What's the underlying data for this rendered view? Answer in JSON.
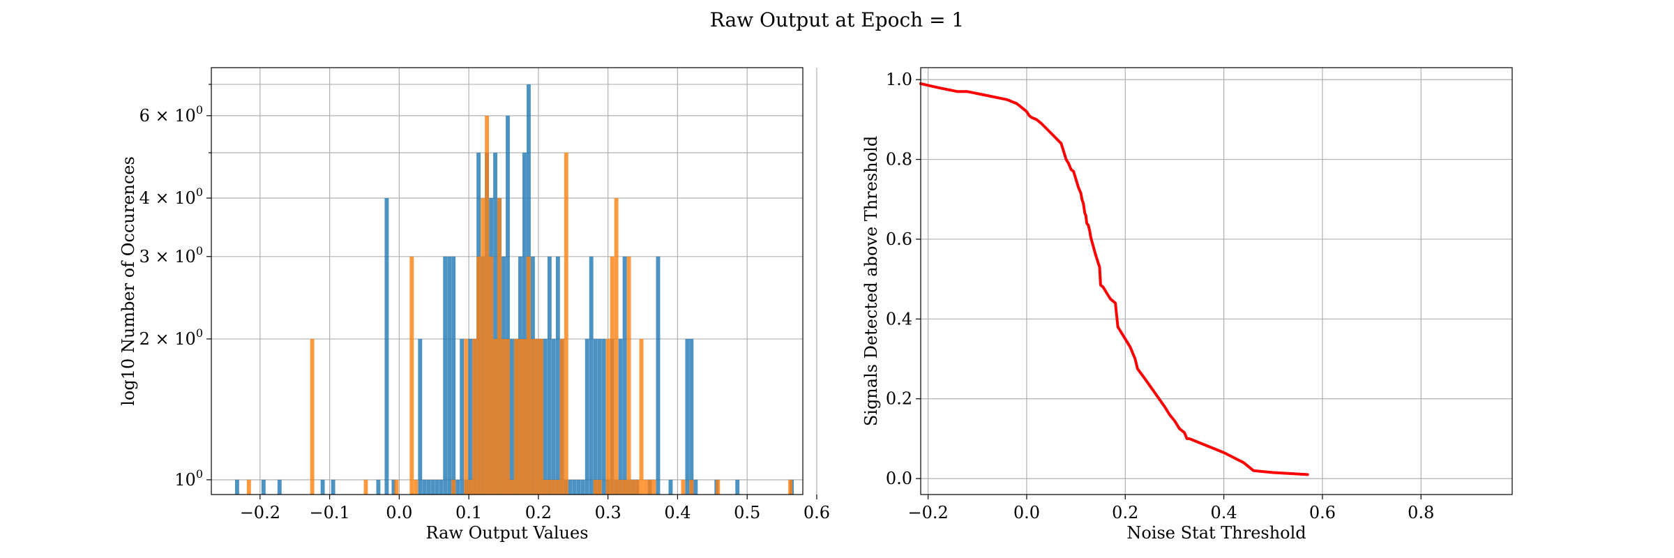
{
  "figure": {
    "title": "Raw Output at Epoch = 1"
  },
  "colors": {
    "blue": "#1f77b4",
    "orange": "#ff7f0e",
    "red": "#ff0000",
    "grid": "#b0b0b0"
  },
  "chart_data": [
    {
      "type": "bar",
      "subtype": "histogram",
      "xlabel": "Raw Output Values",
      "ylabel": "log10 Number of Occurences",
      "yscale": "log",
      "xlim": [
        -0.27,
        0.58
      ],
      "ylim": [
        0.93,
        7.6
      ],
      "grid": true,
      "x_ticks": [
        -0.2,
        -0.1,
        0.0,
        0.1,
        0.2,
        0.3,
        0.4,
        0.5,
        0.6
      ],
      "x_tick_labels": [
        "−0.2",
        "−0.1",
        "0.0",
        "0.1",
        "0.2",
        "0.3",
        "0.4",
        "0.5",
        "0.6"
      ],
      "y_ticks": [
        1,
        2,
        3,
        4,
        6
      ],
      "y_tick_labels": [
        {
          "base": "10",
          "exp": "0"
        },
        {
          "base": "2 × 10",
          "exp": "0"
        },
        {
          "base": "3 × 10",
          "exp": "0"
        },
        {
          "base": "4 × 10",
          "exp": "0"
        },
        {
          "base": "6 × 10",
          "exp": "0"
        }
      ],
      "y_minor_ticks": [
        5,
        7
      ],
      "bin_width": 0.0059,
      "series": [
        {
          "color": "#1f77b4",
          "bins": [
            {
              "x": -0.233,
              "count": 1
            },
            {
              "x": -0.195,
              "count": 1
            },
            {
              "x": -0.172,
              "count": 1
            },
            {
              "x": -0.11,
              "count": 1
            },
            {
              "x": -0.095,
              "count": 1
            },
            {
              "x": -0.03,
              "count": 1
            },
            {
              "x": -0.018,
              "count": 4
            },
            {
              "x": -0.008,
              "count": 1
            },
            {
              "x": 0.03,
              "count": 2
            },
            {
              "x": 0.036,
              "count": 1
            },
            {
              "x": 0.042,
              "count": 1
            },
            {
              "x": 0.048,
              "count": 1
            },
            {
              "x": 0.054,
              "count": 1
            },
            {
              "x": 0.06,
              "count": 1
            },
            {
              "x": 0.066,
              "count": 3
            },
            {
              "x": 0.072,
              "count": 3
            },
            {
              "x": 0.078,
              "count": 3
            },
            {
              "x": 0.084,
              "count": 1
            },
            {
              "x": 0.09,
              "count": 2
            },
            {
              "x": 0.096,
              "count": 1
            },
            {
              "x": 0.102,
              "count": 2
            },
            {
              "x": 0.108,
              "count": 2
            },
            {
              "x": 0.114,
              "count": 5
            },
            {
              "x": 0.12,
              "count": 3
            },
            {
              "x": 0.126,
              "count": 5
            },
            {
              "x": 0.132,
              "count": 4
            },
            {
              "x": 0.138,
              "count": 5
            },
            {
              "x": 0.144,
              "count": 4
            },
            {
              "x": 0.15,
              "count": 3
            },
            {
              "x": 0.156,
              "count": 6
            },
            {
              "x": 0.162,
              "count": 2
            },
            {
              "x": 0.168,
              "count": 2
            },
            {
              "x": 0.174,
              "count": 3
            },
            {
              "x": 0.18,
              "count": 5
            },
            {
              "x": 0.186,
              "count": 7
            },
            {
              "x": 0.192,
              "count": 3
            },
            {
              "x": 0.198,
              "count": 2
            },
            {
              "x": 0.204,
              "count": 2
            },
            {
              "x": 0.21,
              "count": 2
            },
            {
              "x": 0.216,
              "count": 3
            },
            {
              "x": 0.222,
              "count": 2
            },
            {
              "x": 0.228,
              "count": 3
            },
            {
              "x": 0.234,
              "count": 2
            },
            {
              "x": 0.24,
              "count": 1
            },
            {
              "x": 0.246,
              "count": 1
            },
            {
              "x": 0.252,
              "count": 1
            },
            {
              "x": 0.258,
              "count": 1
            },
            {
              "x": 0.264,
              "count": 1
            },
            {
              "x": 0.27,
              "count": 2
            },
            {
              "x": 0.276,
              "count": 3
            },
            {
              "x": 0.282,
              "count": 2
            },
            {
              "x": 0.288,
              "count": 2
            },
            {
              "x": 0.294,
              "count": 2
            },
            {
              "x": 0.3,
              "count": 1
            },
            {
              "x": 0.306,
              "count": 2
            },
            {
              "x": 0.312,
              "count": 1
            },
            {
              "x": 0.318,
              "count": 2
            },
            {
              "x": 0.324,
              "count": 3
            },
            {
              "x": 0.33,
              "count": 1
            },
            {
              "x": 0.336,
              "count": 1
            },
            {
              "x": 0.342,
              "count": 1
            },
            {
              "x": 0.36,
              "count": 1
            },
            {
              "x": 0.372,
              "count": 3
            },
            {
              "x": 0.39,
              "count": 1
            },
            {
              "x": 0.414,
              "count": 2
            },
            {
              "x": 0.42,
              "count": 2
            },
            {
              "x": 0.426,
              "count": 1
            },
            {
              "x": 0.456,
              "count": 1
            },
            {
              "x": 0.486,
              "count": 1
            },
            {
              "x": 0.564,
              "count": 1
            }
          ]
        },
        {
          "color": "#ff7f0e",
          "bins": [
            {
              "x": -0.216,
              "count": 1
            },
            {
              "x": -0.125,
              "count": 2
            },
            {
              "x": -0.048,
              "count": 1
            },
            {
              "x": -0.004,
              "count": 1
            },
            {
              "x": 0.018,
              "count": 3
            },
            {
              "x": 0.024,
              "count": 1
            },
            {
              "x": 0.078,
              "count": 1
            },
            {
              "x": 0.096,
              "count": 2
            },
            {
              "x": 0.102,
              "count": 1
            },
            {
              "x": 0.108,
              "count": 2
            },
            {
              "x": 0.114,
              "count": 3
            },
            {
              "x": 0.12,
              "count": 4
            },
            {
              "x": 0.126,
              "count": 6
            },
            {
              "x": 0.132,
              "count": 3
            },
            {
              "x": 0.138,
              "count": 2
            },
            {
              "x": 0.144,
              "count": 4
            },
            {
              "x": 0.15,
              "count": 2
            },
            {
              "x": 0.156,
              "count": 2
            },
            {
              "x": 0.162,
              "count": 1
            },
            {
              "x": 0.168,
              "count": 2
            },
            {
              "x": 0.174,
              "count": 2
            },
            {
              "x": 0.18,
              "count": 2
            },
            {
              "x": 0.186,
              "count": 3
            },
            {
              "x": 0.192,
              "count": 2
            },
            {
              "x": 0.198,
              "count": 2
            },
            {
              "x": 0.204,
              "count": 2
            },
            {
              "x": 0.21,
              "count": 1
            },
            {
              "x": 0.216,
              "count": 1
            },
            {
              "x": 0.222,
              "count": 1
            },
            {
              "x": 0.228,
              "count": 1
            },
            {
              "x": 0.234,
              "count": 2
            },
            {
              "x": 0.24,
              "count": 5
            },
            {
              "x": 0.282,
              "count": 1
            },
            {
              "x": 0.288,
              "count": 1
            },
            {
              "x": 0.3,
              "count": 2
            },
            {
              "x": 0.306,
              "count": 3
            },
            {
              "x": 0.312,
              "count": 4
            },
            {
              "x": 0.318,
              "count": 1
            },
            {
              "x": 0.324,
              "count": 1
            },
            {
              "x": 0.33,
              "count": 3
            },
            {
              "x": 0.336,
              "count": 1
            },
            {
              "x": 0.342,
              "count": 1
            },
            {
              "x": 0.348,
              "count": 2
            },
            {
              "x": 0.354,
              "count": 1
            },
            {
              "x": 0.36,
              "count": 1
            },
            {
              "x": 0.366,
              "count": 1
            },
            {
              "x": 0.408,
              "count": 1
            },
            {
              "x": 0.42,
              "count": 1
            },
            {
              "x": 0.458,
              "count": 1
            },
            {
              "x": 0.562,
              "count": 1
            }
          ]
        }
      ]
    },
    {
      "type": "line",
      "xlabel": "Noise Stat Threshold",
      "ylabel": "Signals Detected above Threshold",
      "xlim": [
        -0.215,
        0.985
      ],
      "ylim": [
        -0.04,
        1.03
      ],
      "grid": true,
      "x_ticks": [
        -0.2,
        0.0,
        0.2,
        0.4,
        0.6,
        0.8
      ],
      "x_tick_labels": [
        "−0.2",
        "0.0",
        "0.2",
        "0.4",
        "0.6",
        "0.8"
      ],
      "y_ticks": [
        0.0,
        0.2,
        0.4,
        0.6,
        0.8,
        1.0
      ],
      "y_tick_labels": [
        "0.0",
        "0.2",
        "0.4",
        "0.6",
        "0.8",
        "1.0"
      ],
      "series": [
        {
          "color": "#ff0000",
          "x": [
            -0.215,
            -0.18,
            -0.14,
            -0.12,
            -0.08,
            -0.04,
            -0.02,
            -0.01,
            0.0,
            0.005,
            0.01,
            0.02,
            0.03,
            0.05,
            0.07,
            0.08,
            0.085,
            0.09,
            0.095,
            0.1,
            0.105,
            0.11,
            0.112,
            0.115,
            0.118,
            0.12,
            0.122,
            0.125,
            0.128,
            0.13,
            0.14,
            0.148,
            0.15,
            0.155,
            0.16,
            0.165,
            0.17,
            0.18,
            0.185,
            0.19,
            0.2,
            0.21,
            0.22,
            0.225,
            0.24,
            0.26,
            0.28,
            0.29,
            0.3,
            0.31,
            0.32,
            0.325,
            0.33,
            0.35,
            0.4,
            0.44,
            0.46,
            0.5,
            0.57
          ],
          "y": [
            0.99,
            0.98,
            0.97,
            0.97,
            0.96,
            0.95,
            0.94,
            0.93,
            0.92,
            0.91,
            0.905,
            0.9,
            0.89,
            0.865,
            0.84,
            0.8,
            0.79,
            0.775,
            0.77,
            0.75,
            0.73,
            0.715,
            0.7,
            0.69,
            0.665,
            0.66,
            0.64,
            0.635,
            0.62,
            0.605,
            0.56,
            0.53,
            0.485,
            0.48,
            0.47,
            0.46,
            0.45,
            0.44,
            0.38,
            0.37,
            0.35,
            0.33,
            0.3,
            0.275,
            0.25,
            0.215,
            0.18,
            0.16,
            0.145,
            0.125,
            0.115,
            0.1,
            0.1,
            0.09,
            0.065,
            0.04,
            0.02,
            0.015,
            0.01
          ]
        }
      ]
    }
  ]
}
